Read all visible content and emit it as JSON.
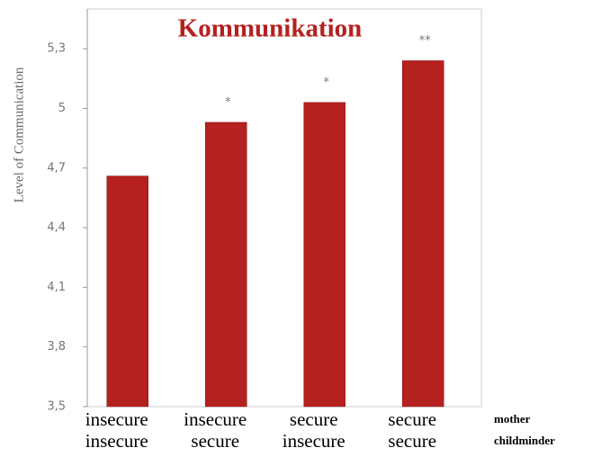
{
  "chart_data": {
    "type": "bar",
    "title": "Kommunikation",
    "y_label": "Level of Communication",
    "categories": [
      "insecure",
      "insecure",
      "secure",
      "secure"
    ],
    "subcategories": [
      "insecure",
      "secure",
      "insecure",
      "secure"
    ],
    "category_rows": [
      "mother",
      "childminder"
    ],
    "values": [
      4.66,
      4.93,
      5.03,
      5.24
    ],
    "significance": [
      null,
      "*",
      "*",
      "**"
    ],
    "color": "#b5211f",
    "ylim": [
      3.5,
      5.5
    ],
    "yticks": [
      {
        "value": 3.5,
        "label": "3,5"
      },
      {
        "value": 3.8,
        "label": "3,8"
      },
      {
        "value": 4.1,
        "label": "4,1"
      },
      {
        "value": 4.4,
        "label": "4,4"
      },
      {
        "value": 4.7,
        "label": "4,7"
      },
      5,
      {
        "value": 5.3,
        "label": "5,3"
      }
    ],
    "grid": false
  }
}
